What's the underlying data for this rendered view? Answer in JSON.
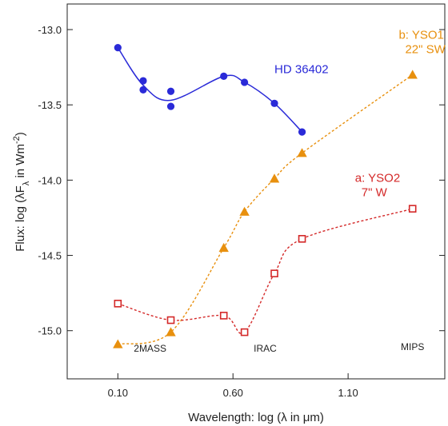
{
  "chart_data": {
    "type": "line",
    "title": "",
    "xlabel": "Wavelength: log (λ in μm)",
    "ylabel_parts": {
      "prefix": "Flux: log (λF",
      "sub": "λ",
      "middle": " in Wm",
      "sup": "-2",
      "suffix": ")"
    },
    "xlim": [
      -0.12,
      1.52
    ],
    "ylim": [
      -15.32,
      -12.83
    ],
    "xticks": [
      0.1,
      0.6,
      1.1
    ],
    "xtick_labels": [
      "0.10",
      "0.60",
      "1.10"
    ],
    "yticks": [
      -13.0,
      -13.5,
      -14.0,
      -14.5,
      -15.0
    ],
    "ytick_labels": [
      "-13.0",
      "-13.5",
      "-14.0",
      "-14.5",
      "-15.0"
    ],
    "grid": false,
    "band_labels": [
      {
        "text": "2MASS",
        "x": 0.24,
        "y": -15.14
      },
      {
        "text": "IRAC",
        "x": 0.74,
        "y": -15.14
      },
      {
        "text": "MIPS",
        "x": 1.38,
        "y": -15.13
      }
    ],
    "series": [
      {
        "name_lines": [
          "HD 36402"
        ],
        "label_x": 0.78,
        "label_y": -13.29,
        "color": "#2a2ad8",
        "marker": "circle",
        "dashed": false,
        "x": [
          0.1,
          0.21,
          0.21,
          0.33,
          0.33,
          0.56,
          0.65,
          0.78,
          0.9
        ],
        "y": [
          -13.12,
          -13.34,
          -13.4,
          -13.41,
          -13.51,
          -13.31,
          -13.35,
          -13.49,
          -13.68
        ],
        "curve_x": [
          0.1,
          0.21,
          0.33,
          0.56,
          0.65,
          0.78,
          0.9
        ],
        "curve_y": [
          -13.12,
          -13.37,
          -13.47,
          -13.31,
          -13.35,
          -13.49,
          -13.68
        ]
      },
      {
        "name_lines": [
          "b: YSO1",
          "22\" SW"
        ],
        "label_x": 1.32,
        "label_y": -13.06,
        "color": "#e8900e",
        "marker": "triangle",
        "dashed": true,
        "x": [
          0.1,
          0.33,
          0.56,
          0.65,
          0.78,
          0.9,
          1.38
        ],
        "y": [
          -15.09,
          -15.01,
          -14.45,
          -14.21,
          -13.99,
          -13.82,
          -13.3
        ]
      },
      {
        "name_lines": [
          "a: YSO2",
          "7\" W"
        ],
        "label_x": 1.13,
        "label_y": -14.01,
        "color": "#d42828",
        "marker": "square",
        "dashed": true,
        "x": [
          0.1,
          0.33,
          0.56,
          0.65,
          0.78,
          0.9,
          1.38
        ],
        "y": [
          -14.82,
          -14.93,
          -14.9,
          -15.01,
          -14.62,
          -14.39,
          -14.19
        ]
      }
    ]
  }
}
